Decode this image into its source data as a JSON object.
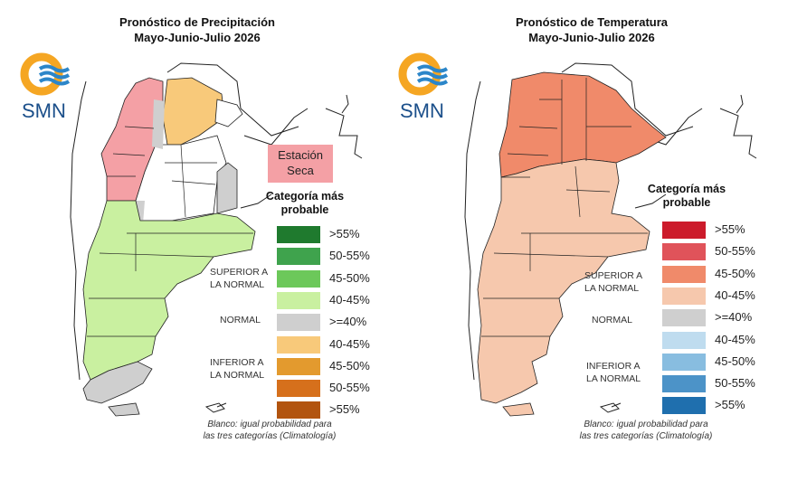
{
  "left": {
    "title_line1": "Pronóstico de Precipitación",
    "title_line2": "Mayo-Junio-Julio 2026",
    "logo_text": "SMN",
    "seca_label_line1": "Estación",
    "seca_label_line2": "Seca",
    "legend_title_line1": "Categoría más",
    "legend_title_line2": "probable",
    "superior_line1": "SUPERIOR A",
    "superior_line2": "LA NORMAL",
    "normal": "NORMAL",
    "inferior_line1": "INFERIOR A",
    "inferior_line2": "LA NORMAL",
    "legend": [
      {
        "label": ">55%",
        "color": "#1f7a2e"
      },
      {
        "label": "50-55%",
        "color": "#3fa34d"
      },
      {
        "label": "45-50%",
        "color": "#6cc85a"
      },
      {
        "label": "40-45%",
        "color": "#c9f0a0"
      },
      {
        "label": ">=40%",
        "color": "#cfcfcf"
      },
      {
        "label": "40-45%",
        "color": "#f8c97a"
      },
      {
        "label": "45-50%",
        "color": "#e39a2e"
      },
      {
        "label": "50-55%",
        "color": "#d6701c"
      },
      {
        "label": ">55%",
        "color": "#b2540f"
      }
    ],
    "footer_line1": "Blanco: igual probabilidad para",
    "footer_line2": "las tres categorías (Climatología)"
  },
  "right": {
    "title_line1": "Pronóstico de Temperatura",
    "title_line2": "Mayo-Junio-Julio 2026",
    "logo_text": "SMN",
    "legend_title_line1": "Categoría más",
    "legend_title_line2": "probable",
    "superior_line1": "SUPERIOR A",
    "superior_line2": "LA NORMAL",
    "normal": "NORMAL",
    "inferior_line1": "INFERIOR A",
    "inferior_line2": "LA NORMAL",
    "legend": [
      {
        "label": ">55%",
        "color": "#cc1b2b"
      },
      {
        "label": "50-55%",
        "color": "#e0535a"
      },
      {
        "label": "45-50%",
        "color": "#f08a6a"
      },
      {
        "label": "40-45%",
        "color": "#f6c8ad"
      },
      {
        "label": ">=40%",
        "color": "#cfcfcf"
      },
      {
        "label": "40-45%",
        "color": "#bfdcef"
      },
      {
        "label": "45-50%",
        "color": "#88bde0"
      },
      {
        "label": "50-55%",
        "color": "#4c93c8"
      },
      {
        "label": ">55%",
        "color": "#1f6fae"
      }
    ],
    "footer_line1": "Blanco: igual probabilidad para",
    "footer_line2": "las tres categorías (Climatología)"
  }
}
